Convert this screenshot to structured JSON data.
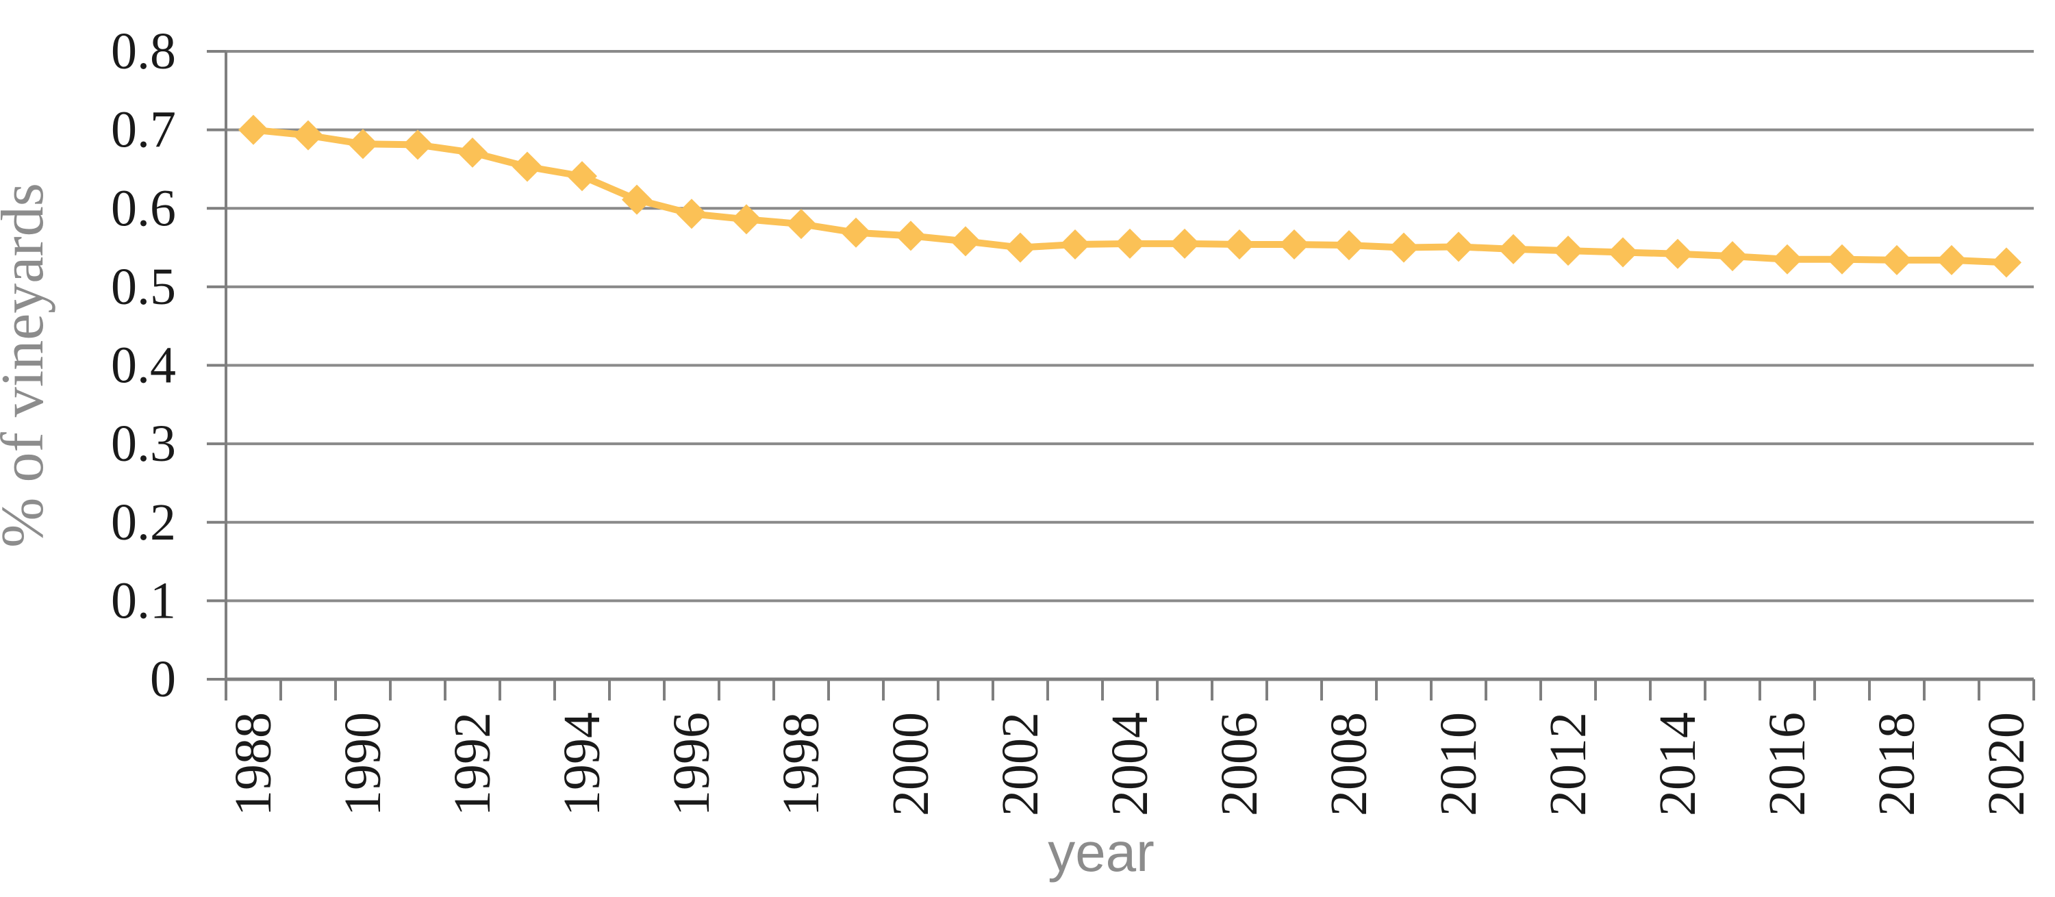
{
  "chart_data": {
    "type": "line",
    "title": "",
    "xlabel": "year",
    "ylabel": "% of vineyards",
    "x": [
      1988,
      1989,
      1990,
      1991,
      1992,
      1993,
      1994,
      1995,
      1996,
      1997,
      1998,
      1999,
      2000,
      2001,
      2002,
      2003,
      2004,
      2005,
      2006,
      2007,
      2008,
      2009,
      2010,
      2011,
      2012,
      2013,
      2014,
      2015,
      2016,
      2017,
      2018,
      2019,
      2020
    ],
    "series": [
      {
        "name": "% of vineyards",
        "values": [
          0.7,
          0.693,
          0.682,
          0.681,
          0.671,
          0.653,
          0.641,
          0.611,
          0.593,
          0.586,
          0.58,
          0.569,
          0.565,
          0.558,
          0.55,
          0.554,
          0.555,
          0.555,
          0.554,
          0.554,
          0.553,
          0.55,
          0.551,
          0.548,
          0.546,
          0.544,
          0.542,
          0.539,
          0.535,
          0.535,
          0.534,
          0.534,
          0.531
        ]
      }
    ],
    "ylim": [
      0,
      0.8
    ],
    "y_ticks": [
      0,
      0.1,
      0.2,
      0.3,
      0.4,
      0.5,
      0.6,
      0.7,
      0.8
    ],
    "y_tick_labels": [
      "0",
      "0.1",
      "0.2",
      "0.3",
      "0.4",
      "0.5",
      "0.6",
      "0.7",
      "0.8"
    ],
    "x_tick_labels": [
      "1988",
      "1990",
      "1992",
      "1994",
      "1996",
      "1998",
      "2000",
      "2002",
      "2004",
      "2006",
      "2008",
      "2010",
      "2012",
      "2014",
      "2016",
      "2018",
      "2020"
    ],
    "grid": "horizontal",
    "legend": "none",
    "marker": "diamond",
    "colors": {
      "series": "#fbc156",
      "gridline": "#8a8a8a",
      "axis_line": "#7f7f7f",
      "tick_label": "#1a1a1a",
      "axis_title": "#8c8c8c",
      "background": "#ffffff"
    }
  }
}
